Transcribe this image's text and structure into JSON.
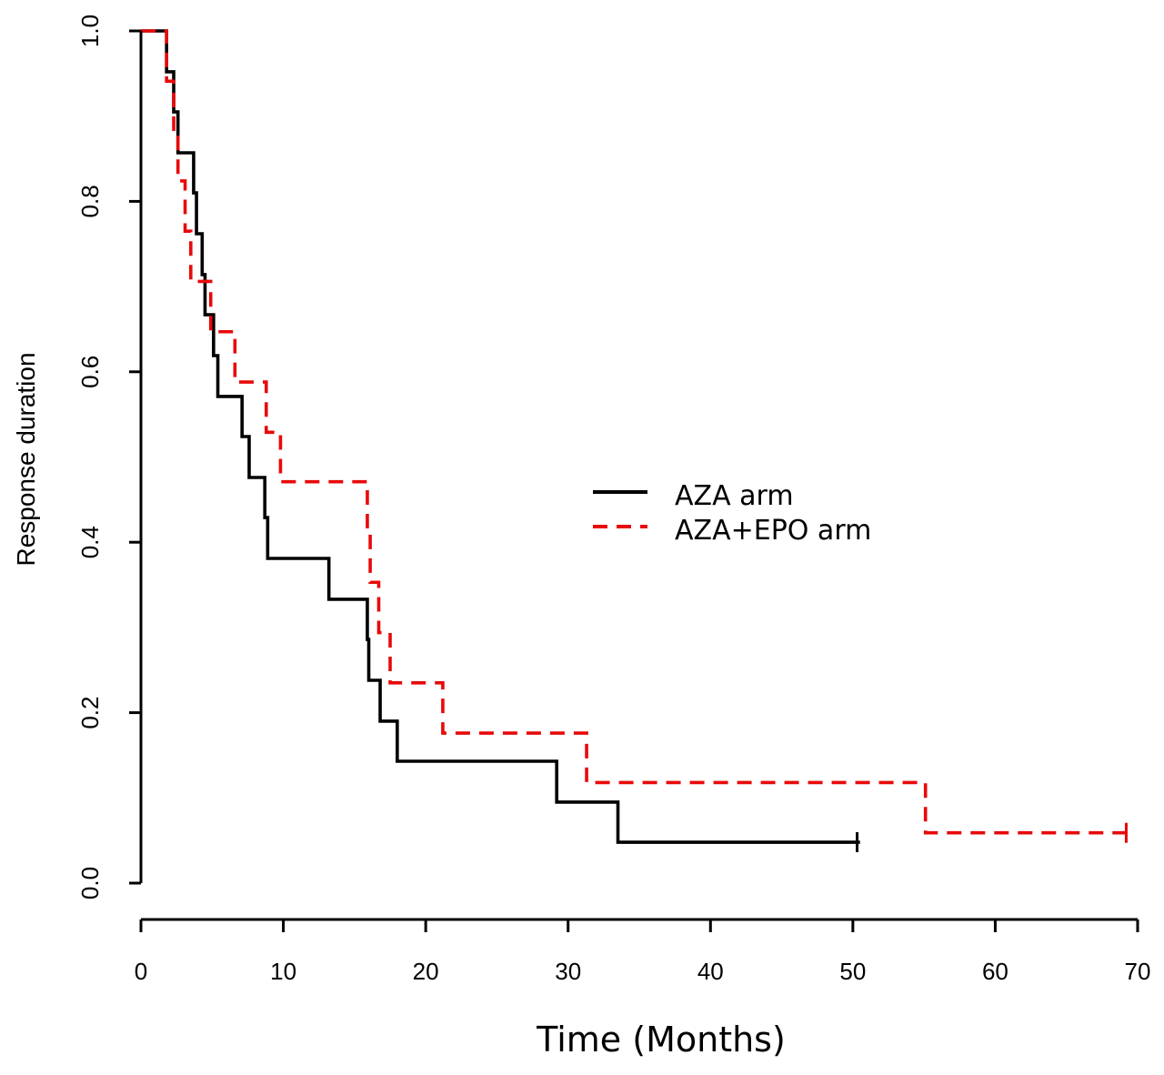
{
  "chart_data": {
    "type": "line",
    "subtype": "kaplan-meier step",
    "title": "",
    "xlabel": "Time (Months)",
    "ylabel": "Response duration",
    "xlim": [
      0,
      70
    ],
    "ylim": [
      0,
      1
    ],
    "x_ticks": [
      0,
      10,
      20,
      30,
      40,
      50,
      60,
      70
    ],
    "y_ticks": [
      0.0,
      0.2,
      0.4,
      0.6,
      0.8,
      1.0
    ],
    "x_tick_labels": [
      "0",
      "10",
      "20",
      "30",
      "40",
      "50",
      "60",
      "70"
    ],
    "y_tick_labels": [
      "0.0",
      "0.2",
      "0.4",
      "0.6",
      "0.8",
      "1.0"
    ],
    "grid": false,
    "legend_position": "center-right",
    "series": [
      {
        "name": "AZA arm",
        "color": "#000000",
        "style": "solid",
        "steps": [
          [
            0,
            1.0
          ],
          [
            1.8,
            0.952
          ],
          [
            2.3,
            0.905
          ],
          [
            2.6,
            0.857
          ],
          [
            3.7,
            0.81
          ],
          [
            3.9,
            0.762
          ],
          [
            4.3,
            0.714
          ],
          [
            4.5,
            0.667
          ],
          [
            5.1,
            0.619
          ],
          [
            5.4,
            0.571
          ],
          [
            7.1,
            0.524
          ],
          [
            7.6,
            0.476
          ],
          [
            8.7,
            0.429
          ],
          [
            8.9,
            0.381
          ],
          [
            13.2,
            0.333
          ],
          [
            15.9,
            0.286
          ],
          [
            16.0,
            0.238
          ],
          [
            16.8,
            0.19
          ],
          [
            18.0,
            0.143
          ],
          [
            29.2,
            0.095
          ],
          [
            33.5,
            0.048
          ],
          [
            50.5,
            0.048
          ]
        ],
        "censored": [
          [
            50.3,
            0.048
          ]
        ]
      },
      {
        "name": "AZA+EPO arm",
        "color": "#e8090a",
        "style": "dashed",
        "steps": [
          [
            0,
            1.0
          ],
          [
            1.8,
            0.941
          ],
          [
            2.3,
            0.882
          ],
          [
            2.6,
            0.824
          ],
          [
            3.1,
            0.765
          ],
          [
            3.5,
            0.706
          ],
          [
            4.9,
            0.647
          ],
          [
            6.6,
            0.588
          ],
          [
            8.8,
            0.529
          ],
          [
            9.8,
            0.471
          ],
          [
            15.9,
            0.412
          ],
          [
            16.1,
            0.353
          ],
          [
            16.7,
            0.294
          ],
          [
            17.5,
            0.235
          ],
          [
            21.2,
            0.176
          ],
          [
            31.3,
            0.118
          ],
          [
            55.1,
            0.059
          ],
          [
            69.5,
            0.059
          ]
        ],
        "censored": [
          [
            69.2,
            0.059
          ]
        ]
      }
    ]
  }
}
